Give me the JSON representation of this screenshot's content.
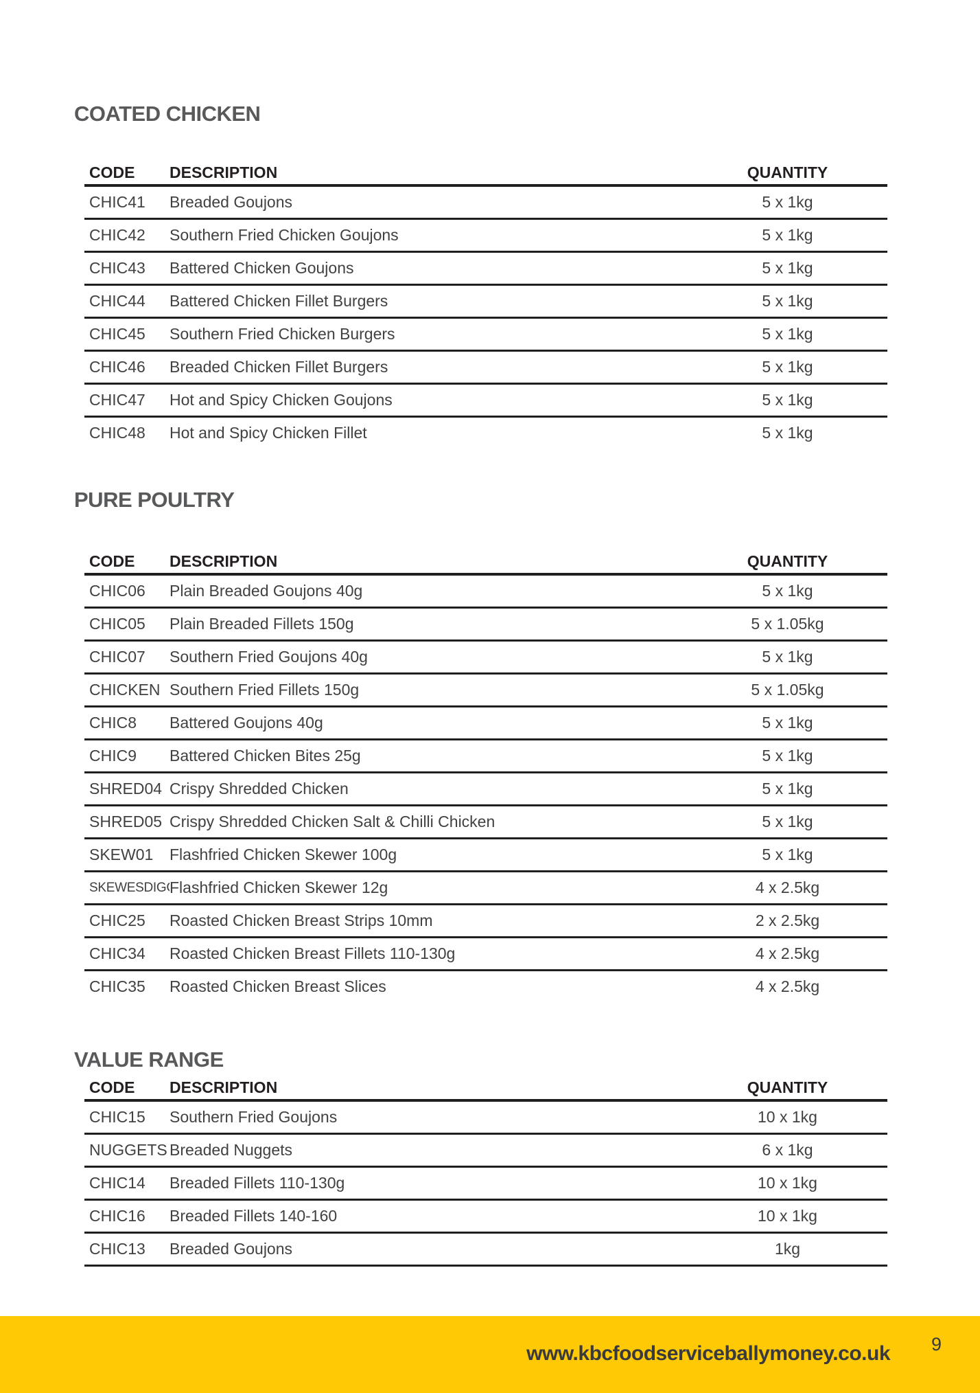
{
  "page": {
    "website": "www.kbcfoodserviceballymoney.co.uk",
    "number": "9"
  },
  "colors": {
    "accent_yellow": "#FFC905",
    "title_gray": "#58595B",
    "text_dark": "#414042",
    "rule_black": "#1F1F1F"
  },
  "sections": [
    {
      "title": "COATED CHICKEN",
      "columns": [
        "CODE",
        "DESCRIPTION",
        "QUANTITY"
      ],
      "rows": [
        {
          "code": "CHIC41",
          "description": "Breaded Goujons",
          "quantity": "5 x 1kg"
        },
        {
          "code": "CHIC42",
          "description": "Southern Fried Chicken Goujons",
          "quantity": "5 x 1kg"
        },
        {
          "code": "CHIC43",
          "description": "Battered Chicken Goujons",
          "quantity": "5 x 1kg"
        },
        {
          "code": "CHIC44",
          "description": "Battered Chicken Fillet Burgers",
          "quantity": "5 x 1kg"
        },
        {
          "code": "CHIC45",
          "description": "Southern Fried Chicken Burgers",
          "quantity": "5 x 1kg"
        },
        {
          "code": "CHIC46",
          "description": "Breaded Chicken Fillet Burgers",
          "quantity": "5 x 1kg"
        },
        {
          "code": "CHIC47",
          "description": "Hot and Spicy Chicken Goujons",
          "quantity": "5 x 1kg"
        },
        {
          "code": "CHIC48",
          "description": "Hot and Spicy Chicken Fillet",
          "quantity": "5 x 1kg"
        }
      ]
    },
    {
      "title": "PURE POULTRY",
      "columns": [
        "CODE",
        "DESCRIPTION",
        "QUANTITY"
      ],
      "rows": [
        {
          "code": "CHIC06",
          "description": "Plain Breaded Goujons 40g",
          "quantity": "5 x 1kg"
        },
        {
          "code": "CHIC05",
          "description": "Plain Breaded Fillets 150g",
          "quantity": "5 x 1.05kg"
        },
        {
          "code": "CHIC07",
          "description": "Southern Fried Goujons 40g",
          "quantity": "5 x 1kg"
        },
        {
          "code": "CHICKEN",
          "description": "Southern Fried Fillets 150g",
          "quantity": "5 x 1.05kg"
        },
        {
          "code": "CHIC8",
          "description": "Battered Goujons 40g",
          "quantity": "5 x 1kg"
        },
        {
          "code": "CHIC9",
          "description": "Battered Chicken Bites 25g",
          "quantity": "5 x 1kg"
        },
        {
          "code": "SHRED04",
          "description": "Crispy Shredded Chicken",
          "quantity": "5 x 1kg"
        },
        {
          "code": "SHRED05",
          "description": "Crispy Shredded Chicken Salt & Chilli Chicken",
          "quantity": "5 x 1kg"
        },
        {
          "code": "SKEW01",
          "description": "Flashfried Chicken Skewer 100g",
          "quantity": "5 x 1kg"
        },
        {
          "code": "SKEWESDIGG",
          "description": "Flashfried Chicken Skewer 12g",
          "quantity": "4 x 2.5kg"
        },
        {
          "code": "CHIC25",
          "description": "Roasted Chicken Breast Strips 10mm",
          "quantity": "2 x 2.5kg"
        },
        {
          "code": "CHIC34",
          "description": "Roasted Chicken Breast Fillets 110-130g",
          "quantity": "4 x 2.5kg"
        },
        {
          "code": "CHIC35",
          "description": "Roasted Chicken Breast Slices",
          "quantity": "4 x 2.5kg"
        }
      ]
    },
    {
      "title": "VALUE RANGE",
      "columns": [
        "CODE",
        "DESCRIPTION",
        "QUANTITY"
      ],
      "rows": [
        {
          "code": "CHIC15",
          "description": "Southern Fried Goujons",
          "quantity": "10 x 1kg"
        },
        {
          "code": "NUGGETS",
          "description": "Breaded Nuggets",
          "quantity": "6 x 1kg"
        },
        {
          "code": "CHIC14",
          "description": "Breaded Fillets 110-130g",
          "quantity": "10 x 1kg"
        },
        {
          "code": "CHIC16",
          "description": "Breaded Fillets 140-160",
          "quantity": "10 x 1kg"
        },
        {
          "code": "CHIC13",
          "description": "Breaded Goujons",
          "quantity": "1kg"
        }
      ]
    }
  ]
}
